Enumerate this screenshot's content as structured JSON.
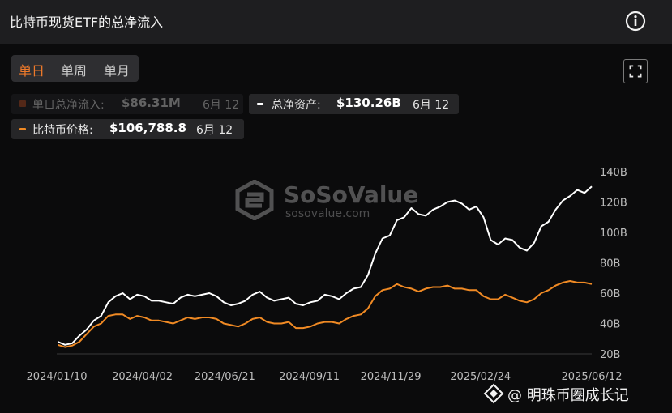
{
  "header": {
    "title": "比特币现货ETF的总净流入"
  },
  "tabs": [
    {
      "label": "单日",
      "active": true
    },
    {
      "label": "单周",
      "active": false
    },
    {
      "label": "单月",
      "active": false
    }
  ],
  "legend": {
    "daily_net_inflow": {
      "label": "单日总净流入:",
      "value": "$86.31M",
      "date": "6月 12",
      "color": "#7a3a1c"
    },
    "total_net_assets": {
      "label": "总净资产:",
      "value": "$130.26B",
      "date": "6月 12",
      "color": "#ffffff"
    },
    "btc_price": {
      "label": "比特币价格:",
      "value": "$106,788.8",
      "date": "6月 12",
      "color": "#f08a24"
    }
  },
  "watermark": {
    "name": "SoSoValue",
    "url": "sosovalue.com"
  },
  "brand": {
    "text": "@ 明珠币圈成长记"
  },
  "chart_data": {
    "type": "line",
    "x": [
      "2024-01-11",
      "2024-01-18",
      "2024-01-25",
      "2024-02-01",
      "2024-02-08",
      "2024-02-15",
      "2024-02-22",
      "2024-02-29",
      "2024-03-07",
      "2024-03-14",
      "2024-03-21",
      "2024-03-28",
      "2024-04-04",
      "2024-04-11",
      "2024-04-18",
      "2024-04-25",
      "2024-05-02",
      "2024-05-09",
      "2024-05-16",
      "2024-05-23",
      "2024-05-30",
      "2024-06-06",
      "2024-06-13",
      "2024-06-20",
      "2024-06-27",
      "2024-07-04",
      "2024-07-11",
      "2024-07-18",
      "2024-07-25",
      "2024-08-01",
      "2024-08-08",
      "2024-08-15",
      "2024-08-22",
      "2024-08-29",
      "2024-09-05",
      "2024-09-12",
      "2024-09-19",
      "2024-09-26",
      "2024-10-03",
      "2024-10-10",
      "2024-10-17",
      "2024-10-24",
      "2024-10-31",
      "2024-11-07",
      "2024-11-14",
      "2024-11-21",
      "2024-11-28",
      "2024-12-05",
      "2024-12-12",
      "2024-12-19",
      "2024-12-26",
      "2025-01-02",
      "2025-01-09",
      "2025-01-16",
      "2025-01-23",
      "2025-01-30",
      "2025-02-06",
      "2025-02-13",
      "2025-02-20",
      "2025-02-27",
      "2025-03-06",
      "2025-03-13",
      "2025-03-20",
      "2025-03-27",
      "2025-04-03",
      "2025-04-10",
      "2025-04-17",
      "2025-04-24",
      "2025-05-01",
      "2025-05-08",
      "2025-05-15",
      "2025-05-22",
      "2025-05-29",
      "2025-06-05",
      "2025-06-12"
    ],
    "series": [
      {
        "name": "总净资产",
        "color": "#ffffff",
        "values": [
          28,
          26,
          27,
          32,
          36,
          42,
          45,
          54,
          58,
          60,
          56,
          59,
          58,
          55,
          55,
          54,
          53,
          57,
          59,
          58,
          59,
          60,
          58,
          54,
          52,
          53,
          55,
          59,
          61,
          57,
          55,
          56,
          57,
          53,
          52,
          54,
          55,
          59,
          58,
          56,
          60,
          63,
          64,
          72,
          86,
          96,
          98,
          108,
          110,
          116,
          112,
          111,
          115,
          117,
          120,
          121,
          119,
          115,
          117,
          110,
          95,
          92,
          96,
          95,
          90,
          88,
          93,
          104,
          107,
          115,
          121,
          124,
          128,
          126,
          130.26
        ]
      },
      {
        "name": "比特币价格",
        "color": "#f08a24",
        "values": [
          26,
          24.5,
          25.5,
          28,
          33,
          38,
          40,
          45,
          46,
          46,
          43,
          45,
          44,
          42,
          42,
          41,
          40,
          42,
          44,
          43,
          44,
          44,
          43,
          40,
          39,
          38,
          40,
          43,
          44,
          41,
          40,
          40,
          41,
          37,
          37,
          38,
          40,
          41,
          41,
          40,
          43,
          45,
          46,
          50,
          58,
          62,
          63,
          66,
          64,
          63,
          61,
          63,
          64,
          64,
          65,
          63,
          63,
          62,
          62,
          58,
          56,
          56,
          59,
          57,
          55,
          54,
          56,
          60,
          62,
          65,
          67,
          68,
          67,
          67,
          66
        ]
      }
    ],
    "ylim": [
      20,
      140
    ],
    "y_ticks": [
      "20B",
      "40B",
      "60B",
      "80B",
      "100B",
      "120B",
      "140B"
    ],
    "x_ticks": [
      "2024/01/10",
      "2024/04/02",
      "2024/06/21",
      "2024/09/11",
      "2024/11/29",
      "2025/02/24",
      "2025/06/12"
    ],
    "grid": false
  }
}
